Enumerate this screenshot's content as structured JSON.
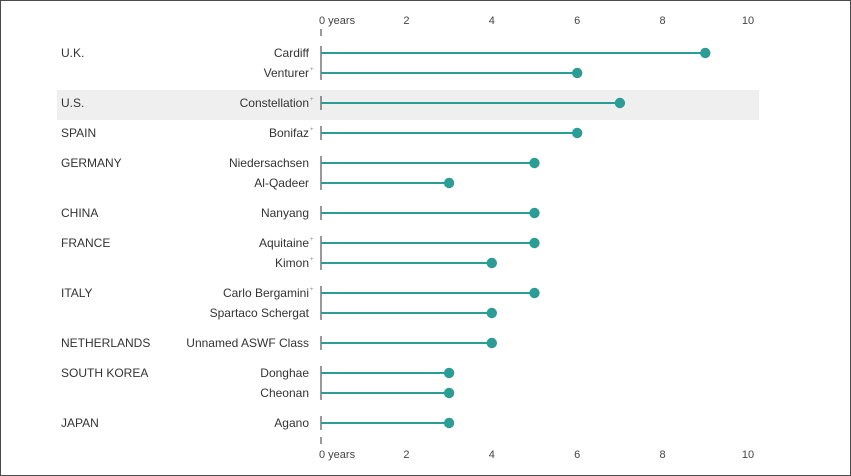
{
  "colors": {
    "accent": "#2a9d95",
    "highlight_band": "#efefef",
    "axis": "#555555",
    "text": "#333333"
  },
  "chart_data": {
    "type": "lollipop",
    "xlabel": "",
    "ylabel": "",
    "xlim": [
      0,
      10
    ],
    "ticks": [
      "0 years",
      "2",
      "4",
      "6",
      "8",
      "10"
    ],
    "tick_values": [
      0,
      2,
      4,
      6,
      8,
      10
    ],
    "highlighted_group": "U.S.",
    "groups": [
      {
        "country": "U.K.",
        "ships": [
          {
            "name": "Cardiff",
            "value": 9,
            "marker": false
          },
          {
            "name": "Venturer",
            "value": 6,
            "marker": true
          }
        ]
      },
      {
        "country": "U.S.",
        "ships": [
          {
            "name": "Constellation",
            "value": 7,
            "marker": true
          }
        ]
      },
      {
        "country": "SPAIN",
        "ships": [
          {
            "name": "Bonifaz",
            "value": 6,
            "marker": true
          }
        ]
      },
      {
        "country": "GERMANY",
        "ships": [
          {
            "name": "Niedersachsen",
            "value": 5,
            "marker": false
          },
          {
            "name": "Al-Qadeer",
            "value": 3,
            "marker": false
          }
        ]
      },
      {
        "country": "CHINA",
        "ships": [
          {
            "name": "Nanyang",
            "value": 5,
            "marker": false
          }
        ]
      },
      {
        "country": "FRANCE",
        "ships": [
          {
            "name": "Aquitaine",
            "value": 5,
            "marker": true
          },
          {
            "name": "Kimon",
            "value": 4,
            "marker": true
          }
        ]
      },
      {
        "country": "ITALY",
        "ships": [
          {
            "name": "Carlo Bergamini",
            "value": 5,
            "marker": true
          },
          {
            "name": "Spartaco Schergat",
            "value": 4,
            "marker": false
          }
        ]
      },
      {
        "country": "NETHERLANDS",
        "ships": [
          {
            "name": "Unnamed ASWF Class",
            "value": 4,
            "marker": false
          }
        ]
      },
      {
        "country": "SOUTH KOREA",
        "ships": [
          {
            "name": "Donghae",
            "value": 3,
            "marker": false
          },
          {
            "name": "Cheonan",
            "value": 3,
            "marker": false
          }
        ]
      },
      {
        "country": "JAPAN",
        "ships": [
          {
            "name": "Agano",
            "value": 3,
            "marker": false
          }
        ]
      }
    ]
  }
}
